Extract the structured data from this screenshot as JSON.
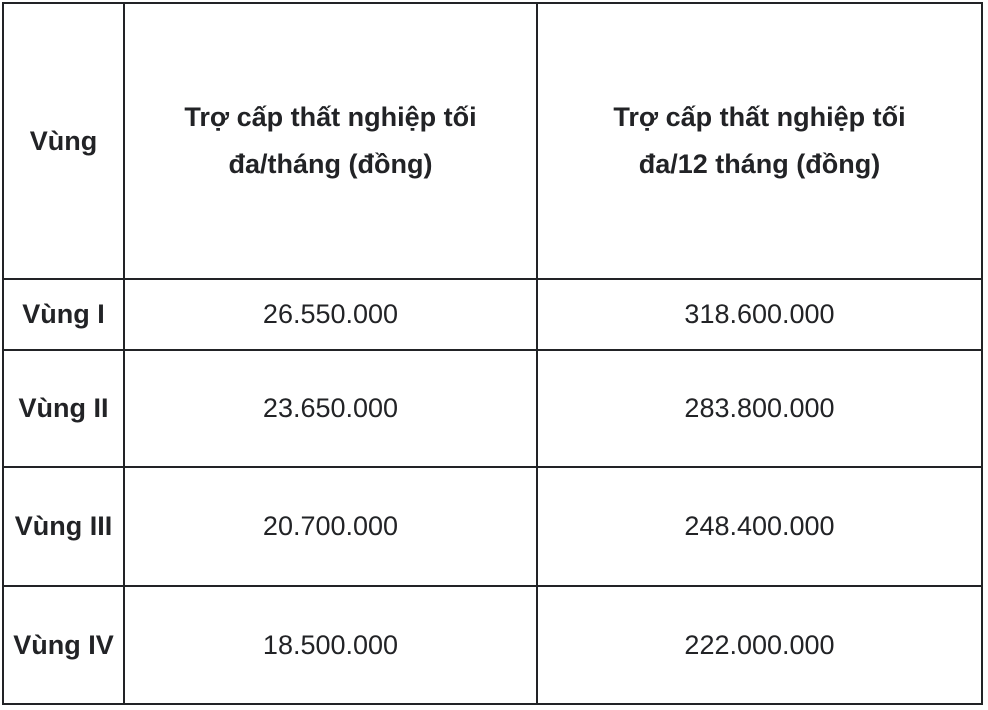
{
  "table": {
    "headers": [
      "Vùng",
      "Trợ cấp thất nghiệp tối đa/tháng (đồng)",
      "Trợ cấp thất nghiệp tối đa/12 tháng (đồng)"
    ],
    "rows": [
      [
        "Vùng I",
        "26.550.000",
        "318.600.000"
      ],
      [
        "Vùng II",
        "23.650.000",
        "283.800.000"
      ],
      [
        "Vùng III",
        "20.700.000",
        "248.400.000"
      ],
      [
        "Vùng IV",
        "18.500.000",
        "222.000.000"
      ]
    ]
  }
}
